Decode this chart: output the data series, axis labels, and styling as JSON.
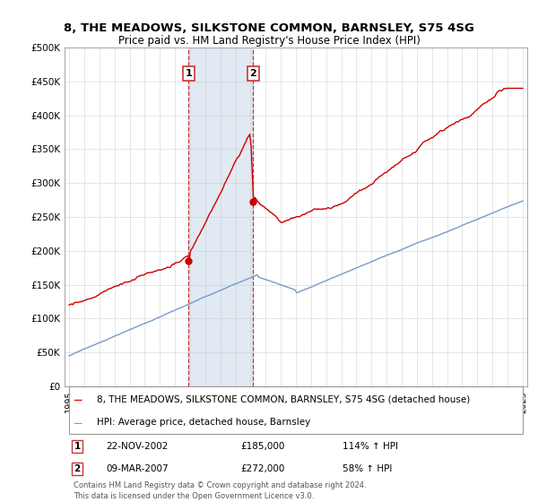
{
  "title": "8, THE MEADOWS, SILKSTONE COMMON, BARNSLEY, S75 4SG",
  "subtitle": "Price paid vs. HM Land Registry's House Price Index (HPI)",
  "ylim": [
    0,
    500000
  ],
  "yticks": [
    0,
    50000,
    100000,
    150000,
    200000,
    250000,
    300000,
    350000,
    400000,
    450000,
    500000
  ],
  "ytick_labels": [
    "£0",
    "£50K",
    "£100K",
    "£150K",
    "£200K",
    "£250K",
    "£300K",
    "£350K",
    "£400K",
    "£450K",
    "£500K"
  ],
  "sale1_date": 2002.9,
  "sale1_price": 185000,
  "sale1_label": "1",
  "sale1_text": "22-NOV-2002",
  "sale1_amount": "£185,000",
  "sale1_hpi": "114% ↑ HPI",
  "sale2_date": 2007.18,
  "sale2_price": 272000,
  "sale2_label": "2",
  "sale2_text": "09-MAR-2007",
  "sale2_amount": "£272,000",
  "sale2_hpi": "58% ↑ HPI",
  "line_color_red": "#cc0000",
  "line_color_blue": "#7799cc",
  "shade_color": "#c5d5e8",
  "shade_alpha": 0.5,
  "legend_line1": "8, THE MEADOWS, SILKSTONE COMMON, BARNSLEY, S75 4SG (detached house)",
  "legend_line2": "HPI: Average price, detached house, Barnsley",
  "footer1": "Contains HM Land Registry data © Crown copyright and database right 2024.",
  "footer2": "This data is licensed under the Open Government Licence v3.0.",
  "background_color": "#ffffff",
  "grid_color": "#cccccc",
  "box_edge_color": "#cc3333"
}
